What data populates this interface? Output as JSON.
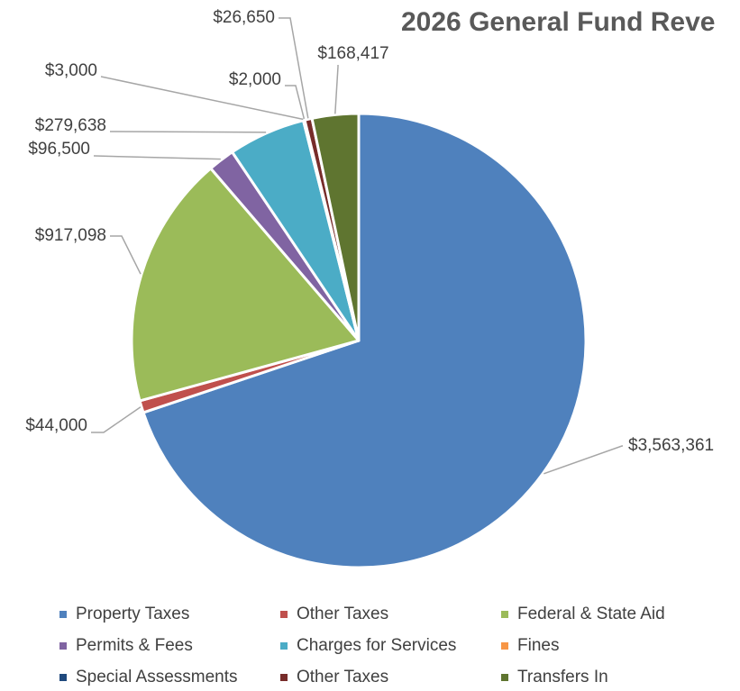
{
  "chart_data": {
    "type": "pie",
    "title": "2026 General Fund Reve",
    "categories": [
      "Property Taxes",
      "Other Taxes",
      "Federal & State Aid",
      "Permits & Fees",
      "Charges for Services",
      "Fines",
      "Special Assessments",
      "Other Taxes",
      "Transfers In"
    ],
    "values": [
      3563361,
      44000,
      917098,
      96500,
      279638,
      3000,
      2000,
      26650,
      168417
    ],
    "value_labels": [
      "$3,563,361",
      "$44,000",
      "$917,098",
      "$96,500",
      "$279,638",
      "$3,000",
      "$2,000",
      "$26,650",
      "$168,417"
    ],
    "colors": [
      "#4f81bd",
      "#c0504d",
      "#9bbb59",
      "#8064a2",
      "#4bacc6",
      "#f79646",
      "#1f497d",
      "#772c2a",
      "#5f7530"
    ],
    "legend": "bottom"
  }
}
